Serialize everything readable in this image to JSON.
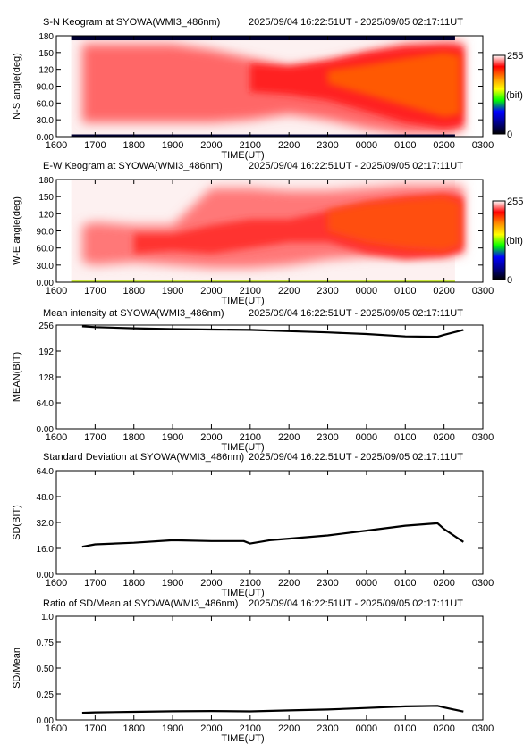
{
  "chart_data": [
    {
      "type": "heatmap",
      "title": "S-N Keogram at SYOWA(WMI3_486nm)",
      "time_range": "2025/09/04 16:22:51UT - 2025/09/05 02:17:11UT",
      "ylabel": "N-S angle(deg)",
      "xlabel": "TIME(UT)",
      "x_ticks": [
        "1600",
        "1700",
        "1800",
        "1900",
        "2000",
        "2100",
        "2200",
        "2300",
        "0000",
        "0100",
        "0200",
        "0300"
      ],
      "y_ticks": [
        "0.00",
        "30.0",
        "60.0",
        "90.0",
        "120",
        "150",
        "180"
      ],
      "ylim": [
        0,
        180
      ],
      "colorbar": {
        "max_label": "255",
        "unit_label": "(bit)",
        "min_label": "0",
        "colors": [
          "#000000",
          "#00008b",
          "#0000ff",
          "#00ff00",
          "#ffff00",
          "#ff8c00",
          "#ff0000",
          "#ffffff"
        ]
      },
      "bands": [
        {
          "x": [
            1640,
            1900,
            2000,
            2100,
            2200,
            2300,
            2400,
            2500,
            2600,
            2630
          ],
          "lo": [
            25,
            25,
            25,
            30,
            40,
            30,
            15,
            5,
            5,
            10
          ],
          "hi": [
            165,
            165,
            155,
            140,
            125,
            135,
            150,
            165,
            170,
            170
          ],
          "intensity": 0.4
        },
        {
          "x": [
            2100,
            2200,
            2300,
            2400,
            2500,
            2600,
            2630
          ],
          "lo": [
            80,
            75,
            65,
            45,
            25,
            15,
            20
          ],
          "hi": [
            130,
            125,
            135,
            150,
            160,
            162,
            160
          ],
          "intensity": 0.72
        },
        {
          "x": [
            2300,
            2400,
            2500,
            2600,
            2625
          ],
          "lo": [
            95,
            75,
            55,
            35,
            40
          ],
          "hi": [
            118,
            128,
            140,
            150,
            145
          ],
          "intensity": 0.92
        }
      ],
      "edge_bands": [
        {
          "lo": 172,
          "hi": 180,
          "color": "#000030"
        },
        {
          "lo": 0,
          "hi": 4,
          "color": "#000030"
        }
      ]
    },
    {
      "type": "heatmap",
      "title": "E-W Keogram at SYOWA(WMI3_486nm)",
      "time_range": "2025/09/04 16:22:51UT - 2025/09/05 02:17:11UT",
      "ylabel": "W-E angle(deg)",
      "xlabel": "TIME(UT)",
      "x_ticks": [
        "1600",
        "1700",
        "1800",
        "1900",
        "2000",
        "2100",
        "2200",
        "2300",
        "0000",
        "0100",
        "0200",
        "0300"
      ],
      "y_ticks": [
        "0.00",
        "30.0",
        "60.0",
        "90.0",
        "120",
        "150",
        "180"
      ],
      "ylim": [
        0,
        180
      ],
      "colorbar": {
        "max_label": "255",
        "unit_label": "(bit)",
        "min_label": "0",
        "colors": [
          "#000000",
          "#00008b",
          "#0000ff",
          "#00ff00",
          "#ffff00",
          "#ff8c00",
          "#ff0000",
          "#ffffff"
        ]
      },
      "bands": [
        {
          "x": [
            1640,
            1700,
            1800,
            1900,
            2000,
            2100,
            2200,
            2300,
            2400,
            2500,
            2600,
            2630
          ],
          "lo": [
            35,
            30,
            35,
            30,
            25,
            25,
            30,
            40,
            45,
            45,
            45,
            50
          ],
          "hi": [
            100,
            105,
            100,
            100,
            165,
            165,
            160,
            160,
            165,
            170,
            170,
            170
          ],
          "intensity": 0.35
        },
        {
          "x": [
            1760,
            1900,
            2000,
            2100,
            2200,
            2300,
            2400,
            2500,
            2600,
            2630
          ],
          "lo": [
            50,
            55,
            50,
            60,
            70,
            70,
            50,
            40,
            45,
            55
          ],
          "hi": [
            85,
            85,
            100,
            110,
            110,
            125,
            140,
            150,
            155,
            150
          ],
          "intensity": 0.6
        },
        {
          "x": [
            2300,
            2400,
            2500,
            2600,
            2625
          ],
          "lo": [
            90,
            70,
            60,
            55,
            65
          ],
          "hi": [
            125,
            138,
            145,
            150,
            140
          ],
          "intensity": 0.9
        }
      ],
      "edge_bands": [
        {
          "lo": 0,
          "hi": 4,
          "color": "#c8e63a"
        }
      ]
    },
    {
      "type": "line",
      "title": "Mean intensity at SYOWA(WMI3_486nm)",
      "time_range": "2025/09/04 16:22:51UT - 2025/09/05 02:17:11UT",
      "ylabel": "MEAN(BIT)",
      "xlabel": "TIME(UT)",
      "x_ticks": [
        "1600",
        "1700",
        "1800",
        "1900",
        "2000",
        "2100",
        "2200",
        "2300",
        "0000",
        "0100",
        "0200",
        "0300"
      ],
      "y_ticks": [
        "0.00",
        "64.0",
        "128",
        "192",
        "256"
      ],
      "ylim": [
        0,
        256
      ],
      "x": [
        1640,
        1700,
        1800,
        1900,
        2000,
        2100,
        2200,
        2300,
        2400,
        2500,
        2550,
        2600,
        2630
      ],
      "y": [
        253,
        251,
        248,
        246,
        245,
        244,
        241,
        238,
        234,
        228,
        227,
        232,
        244
      ]
    },
    {
      "type": "line",
      "title": "Standard Deviation at SYOWA(WMI3_486nm)",
      "time_range": "2025/09/04 16:22:51UT - 2025/09/05 02:17:11UT",
      "ylabel": "SD(BIT)",
      "xlabel": "TIME(UT)",
      "x_ticks": [
        "1600",
        "1700",
        "1800",
        "1900",
        "2000",
        "2100",
        "2200",
        "2300",
        "0000",
        "0100",
        "0200",
        "0300"
      ],
      "y_ticks": [
        "0.00",
        "16.0",
        "32.0",
        "48.0",
        "64.0"
      ],
      "ylim": [
        0,
        64
      ],
      "x": [
        1640,
        1700,
        1800,
        1900,
        2000,
        2050,
        2100,
        2130,
        2200,
        2300,
        2400,
        2500,
        2550,
        2600,
        2630
      ],
      "y": [
        17,
        18.5,
        19.5,
        21,
        20.5,
        20.5,
        19,
        21,
        22,
        24,
        27,
        30,
        31.5,
        28,
        20
      ]
    },
    {
      "type": "line",
      "title": "Ratio of SD/Mean at SYOWA(WMI3_486nm)",
      "time_range": "2025/09/04 16:22:51UT - 2025/09/05 02:17:11UT",
      "ylabel": "SD/Mean",
      "xlabel": "TIME(UT)",
      "x_ticks": [
        "1600",
        "1700",
        "1800",
        "1900",
        "2000",
        "2100",
        "2200",
        "2300",
        "0000",
        "0100",
        "0200",
        "0300"
      ],
      "y_ticks": [
        "0.00",
        "0.25",
        "0.50",
        "0.75",
        "1.0"
      ],
      "ylim": [
        0,
        1
      ],
      "x": [
        1640,
        1700,
        1800,
        1900,
        2000,
        2100,
        2200,
        2300,
        2400,
        2500,
        2550,
        2600,
        2630
      ],
      "y": [
        0.068,
        0.072,
        0.078,
        0.083,
        0.085,
        0.082,
        0.091,
        0.1,
        0.115,
        0.13,
        0.135,
        0.12,
        0.08
      ]
    }
  ]
}
